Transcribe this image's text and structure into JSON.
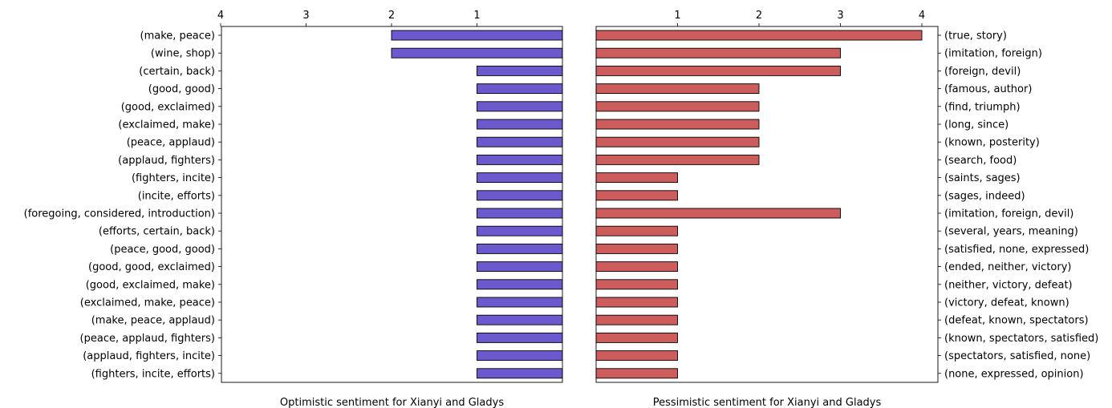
{
  "chart_data": [
    {
      "type": "bar",
      "orientation": "horizontal",
      "direction": "reversed",
      "xlabel": "Optimistic sentiment for Xianyi and Gladys",
      "xlim": [
        0,
        4
      ],
      "xticks": [
        1,
        2,
        3,
        4
      ],
      "color": "#6a5acd",
      "categories": [
        "(make, peace)",
        "(wine, shop)",
        "(certain, back)",
        "(good, good)",
        "(good, exclaimed)",
        "(exclaimed, make)",
        "(peace, applaud)",
        "(applaud, fighters)",
        "(fighters, incite)",
        "(incite, efforts)",
        "(foregoing, considered, introduction)",
        "(efforts, certain, back)",
        "(peace, good, good)",
        "(good, good, exclaimed)",
        "(good, exclaimed, make)",
        "(exclaimed, make, peace)",
        "(make, peace, applaud)",
        "(peace, applaud, fighters)",
        "(applaud, fighters, incite)",
        "(fighters, incite, efforts)"
      ],
      "values": [
        2,
        2,
        1,
        1,
        1,
        1,
        1,
        1,
        1,
        1,
        1,
        1,
        1,
        1,
        1,
        1,
        1,
        1,
        1,
        1
      ]
    },
    {
      "type": "bar",
      "orientation": "horizontal",
      "xlabel": "Pessimistic sentiment for Xianyi and Gladys",
      "xlim": [
        0,
        4.2
      ],
      "xticks": [
        1,
        2,
        3,
        4
      ],
      "color": "#cd5c5c",
      "categories": [
        "(true, story)",
        "(imitation, foreign)",
        "(foreign, devil)",
        "(famous, author)",
        "(find, triumph)",
        "(long, since)",
        "(known, posterity)",
        "(search, food)",
        "(saints, sages)",
        "(sages, indeed)",
        "(imitation, foreign, devil)",
        "(several, years, meaning)",
        "(satisfied, none, expressed)",
        "(ended, neither, victory)",
        "(neither, victory, defeat)",
        "(victory, defeat, known)",
        "(defeat, known, spectators)",
        "(known, spectators, satisfied)",
        "(spectators, satisfied, none)",
        "(none, expressed, opinion)"
      ],
      "values": [
        4,
        3,
        3,
        2,
        2,
        2,
        2,
        2,
        1,
        1,
        3,
        1,
        1,
        1,
        1,
        1,
        1,
        1,
        1,
        1
      ]
    }
  ]
}
